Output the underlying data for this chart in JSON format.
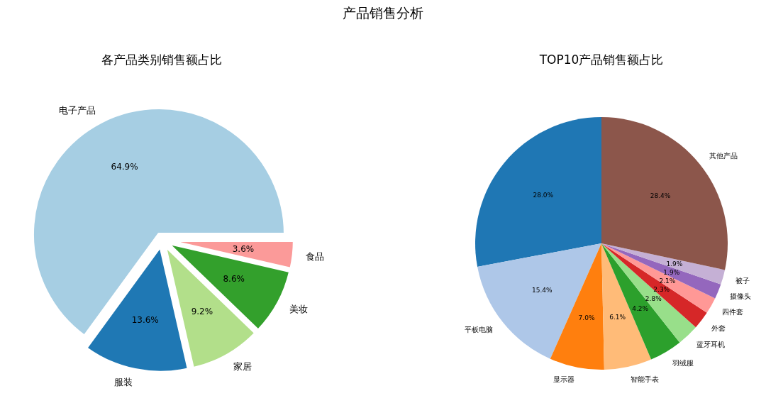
{
  "chart_data": [
    {
      "type": "pie",
      "title": "各产品类别销售额占比",
      "annotations": [
        "产品销售分析"
      ],
      "categories": [
        "电子产品",
        "服装",
        "家居",
        "美妆",
        "食品"
      ],
      "values": [
        64.9,
        13.6,
        9.2,
        8.6,
        3.6
      ],
      "colors": [
        "#a6cee3",
        "#1f78b4",
        "#b2df8a",
        "#33a02c",
        "#fb9a99"
      ],
      "value_labels": [
        "64.9%",
        "13.6%",
        "9.2%",
        "8.6%",
        "3.6%"
      ]
    },
    {
      "type": "pie",
      "title": "TOP10产品销售额占比",
      "categories": [
        null,
        "平板电脑",
        "显示器",
        "智能手表",
        "羽绒服",
        "蓝牙耳机",
        "外套",
        "四件套",
        "摄像头",
        "被子",
        "其他产品"
      ],
      "values": [
        28.0,
        15.4,
        7.0,
        6.1,
        4.2,
        2.8,
        2.3,
        2.1,
        1.9,
        1.9,
        28.4
      ],
      "colors": [
        "#1f77b4",
        "#aec7e8",
        "#ff7f0e",
        "#ffbb78",
        "#2ca02c",
        "#98df8a",
        "#d62728",
        "#ff9896",
        "#9467bd",
        "#c5b0d5",
        "#8c564b"
      ],
      "value_labels": [
        "28.0%",
        "15.4%",
        "7.0%",
        "6.1%",
        "4.2%",
        "2.8%",
        "2.3%",
        "2.1%",
        "1.9%",
        "1.9%",
        "28.4%"
      ]
    }
  ]
}
